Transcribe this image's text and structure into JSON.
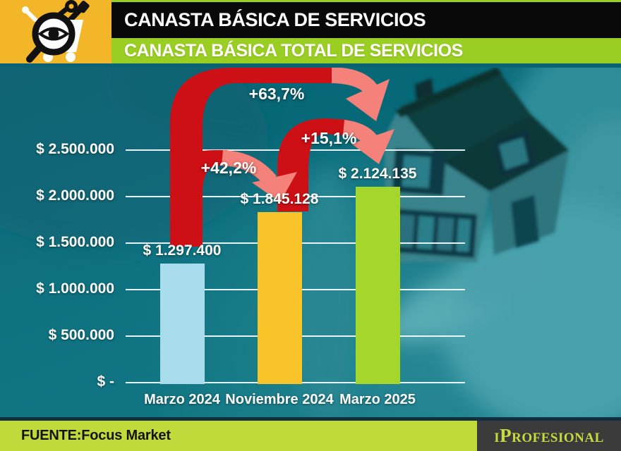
{
  "header": {
    "title": "CANASTA BÁSICA DE SERVICIOS",
    "subtitle": "CANASTA BÁSICA TOTAL DE SERVICIOS",
    "icon": "shopping-cart-with-tools-and-magnifier-eye",
    "colors": {
      "title_bar": "#090909",
      "subtitle_bar": "#9ace23",
      "icon_background": "#f2b628",
      "title_text": "#ffffff"
    }
  },
  "chart_data": {
    "type": "bar",
    "title": "CANASTA BÁSICA TOTAL DE SERVICIOS",
    "categories": [
      "Marzo 2024",
      "Noviembre 2024",
      "Marzo 2025"
    ],
    "values": [
      1297400,
      1845128,
      2124135
    ],
    "value_labels": [
      "$ 1.297.400",
      "$ 1.845.128",
      "$ 2.124.135"
    ],
    "bar_colors": [
      "#a9ddee",
      "#f9c42a",
      "#a4d62b"
    ],
    "y_tick_labels": [
      "$ 2.500.000",
      "$ 2.000.000",
      "$ 1.500.000",
      "$ 1.000.000",
      "$ 500.000",
      "$ -"
    ],
    "y_tick_values": [
      2500000,
      2000000,
      1500000,
      1000000,
      500000,
      0
    ],
    "ylim": [
      0,
      2500000
    ],
    "grid": true,
    "legend": "none",
    "background": "teal photo of hands holding a model house",
    "annotations": [
      {
        "label": "+42,2%",
        "from": "Marzo 2024",
        "to": "Noviembre 2024"
      },
      {
        "label": "+63,7%",
        "from": "Marzo 2024",
        "to": "Marzo 2025"
      },
      {
        "label": "+15,1%",
        "from": "Noviembre 2024",
        "to": "Marzo 2025"
      }
    ],
    "arrow_colors": {
      "dark": "#cd1016",
      "light": "#f5827a"
    }
  },
  "footer": {
    "source_label": "FUENTE:Focus Market",
    "brand": "iProfesional",
    "colors": {
      "bar": "#c0d93b",
      "logo_box": "#3b3b3b",
      "logo_text": "#c9da3e"
    }
  }
}
